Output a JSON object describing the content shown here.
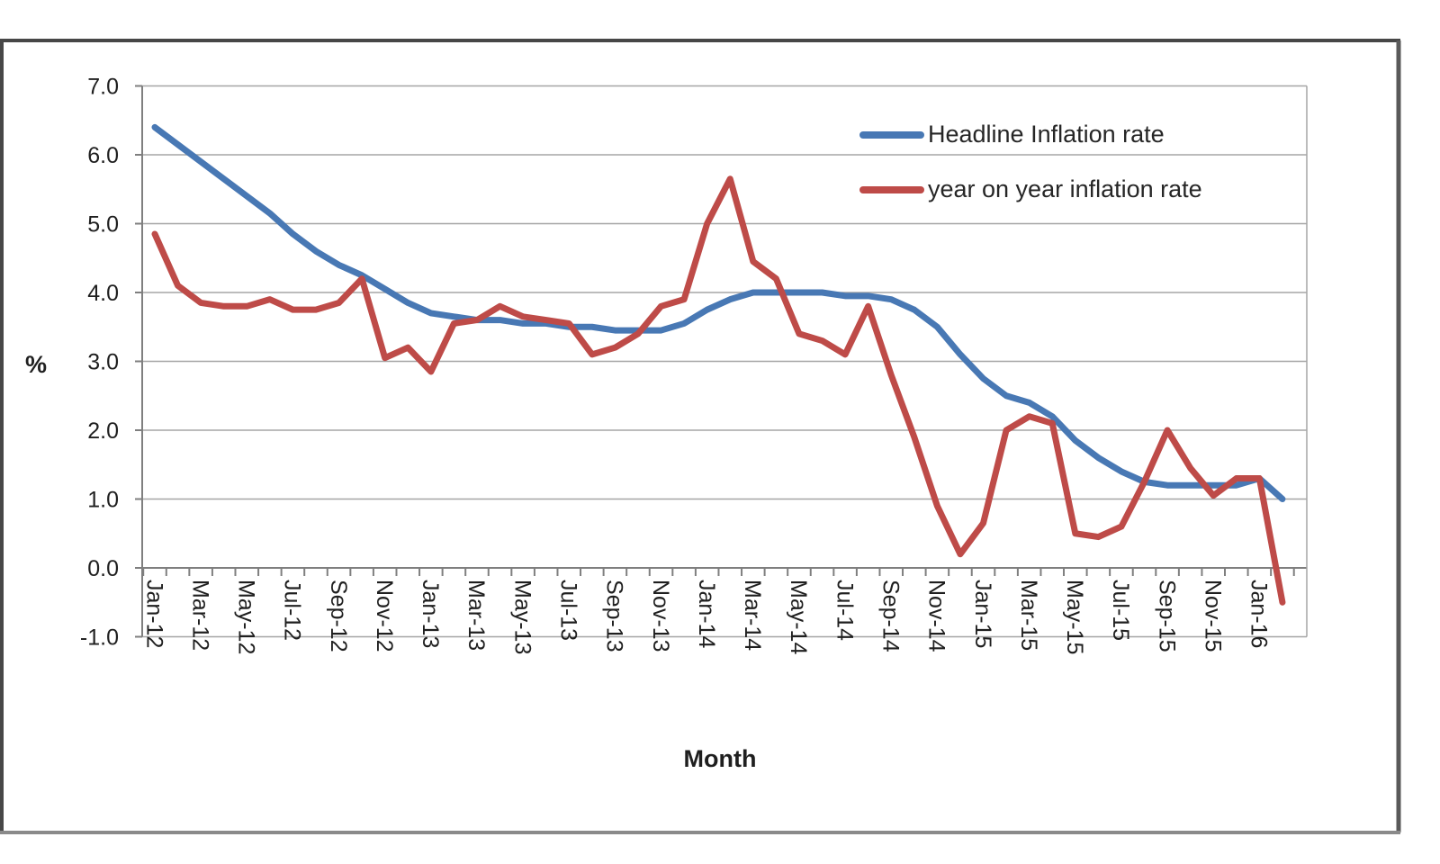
{
  "chart": {
    "y_axis_title": "%",
    "x_axis_title": "Month",
    "legend": {
      "items": [
        {
          "label": "Headline Inflation rate",
          "color": "#4878B4"
        },
        {
          "label": "year on year inflation rate",
          "color": "#BE4B48"
        }
      ]
    }
  },
  "chart_data": {
    "type": "line",
    "title": "",
    "xlabel": "Month",
    "ylabel": "%",
    "ylim": [
      -1.0,
      7.0
    ],
    "grid": "horizontal",
    "legend_position": "top-right-inside",
    "x_tick_rotation": 90,
    "y_tick_labels": [
      "7.0",
      "6.0",
      "5.0",
      "4.0",
      "3.0",
      "2.0",
      "1.0",
      "0.0",
      "-1.0"
    ],
    "y_ticks": [
      7,
      6,
      5,
      4,
      3,
      2,
      1,
      0,
      -1
    ],
    "x": [
      "Jan-12",
      "Feb-12",
      "Mar-12",
      "Apr-12",
      "May-12",
      "Jun-12",
      "Jul-12",
      "Aug-12",
      "Sep-12",
      "Oct-12",
      "Nov-12",
      "Dec-12",
      "Jan-13",
      "Feb-13",
      "Mar-13",
      "Apr-13",
      "May-13",
      "Jun-13",
      "Jul-13",
      "Aug-13",
      "Sep-13",
      "Oct-13",
      "Nov-13",
      "Dec-13",
      "Jan-14",
      "Feb-14",
      "Mar-14",
      "Apr-14",
      "May-14",
      "Jun-14",
      "Jul-14",
      "Aug-14",
      "Sep-14",
      "Oct-14",
      "Nov-14",
      "Dec-14",
      "Jan-15",
      "Feb-15",
      "Mar-15",
      "Apr-15",
      "May-15",
      "Jun-15",
      "Jul-15",
      "Aug-15",
      "Sep-15",
      "Oct-15",
      "Nov-15",
      "Dec-15",
      "Jan-16",
      "Feb-16"
    ],
    "x_tick_labels": [
      "Jan-12",
      "Mar-12",
      "May-12",
      "Jul-12",
      "Sep-12",
      "Nov-12",
      "Jan-13",
      "Mar-13",
      "May-13",
      "Jul-13",
      "Sep-13",
      "Nov-13",
      "Jan-14",
      "Mar-14",
      "May-14",
      "Jul-14",
      "Sep-14",
      "Nov-14",
      "Jan-15",
      "Mar-15",
      "May-15",
      "Jul-15",
      "Sep-15",
      "Nov-15",
      "Jan-16"
    ],
    "x_tick_step": 2,
    "series": [
      {
        "name": "Headline Inflation rate",
        "color": "#4878B4",
        "values": [
          6.4,
          6.15,
          5.9,
          5.65,
          5.4,
          5.15,
          4.85,
          4.6,
          4.4,
          4.25,
          4.05,
          3.85,
          3.7,
          3.65,
          3.6,
          3.6,
          3.55,
          3.55,
          3.5,
          3.5,
          3.45,
          3.45,
          3.45,
          3.55,
          3.75,
          3.9,
          4.0,
          4.0,
          4.0,
          4.0,
          3.95,
          3.95,
          3.9,
          3.75,
          3.5,
          3.1,
          2.75,
          2.5,
          2.4,
          2.2,
          1.85,
          1.6,
          1.4,
          1.25,
          1.2,
          1.2,
          1.2,
          1.2,
          1.3,
          1.0
        ]
      },
      {
        "name": "year on year inflation rate",
        "color": "#BE4B48",
        "values": [
          4.85,
          4.1,
          3.85,
          3.8,
          3.8,
          3.9,
          3.75,
          3.75,
          3.85,
          4.2,
          3.05,
          3.2,
          2.85,
          3.55,
          3.6,
          3.8,
          3.65,
          3.6,
          3.55,
          3.1,
          3.2,
          3.4,
          3.8,
          3.9,
          5.0,
          5.65,
          4.45,
          4.2,
          3.4,
          3.3,
          3.1,
          3.8,
          2.8,
          1.9,
          0.9,
          0.2,
          0.65,
          2.0,
          2.2,
          2.1,
          0.5,
          0.45,
          0.6,
          1.25,
          2.0,
          1.45,
          1.05,
          1.3,
          1.3,
          -0.5
        ]
      }
    ]
  }
}
